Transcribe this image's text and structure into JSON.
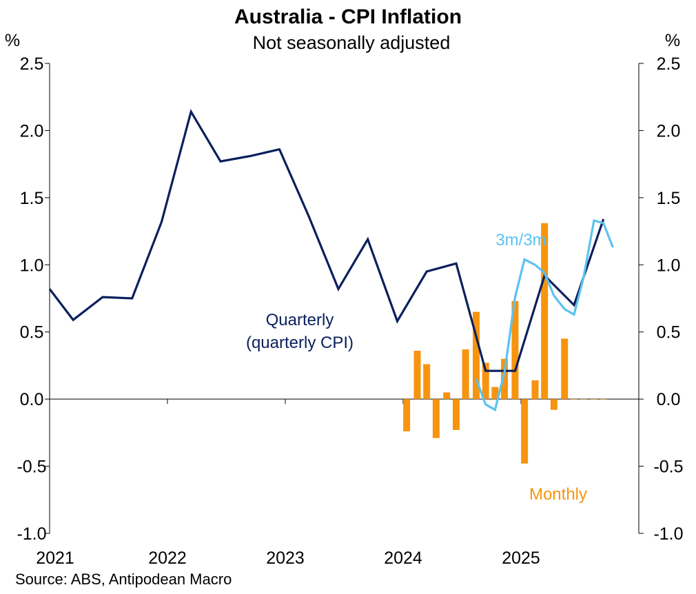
{
  "chart_data": {
    "type": "line+bar",
    "title": "Australia - CPI Inflation",
    "subtitle": "Not seasonally adjusted",
    "left_unit": "%",
    "right_unit": "%",
    "ylim": [
      -1.0,
      2.5
    ],
    "y_ticks": [
      2.5,
      2.0,
      1.5,
      1.0,
      0.5,
      0.0,
      -0.5,
      -1.0
    ],
    "y_tick_labels": [
      "2.5",
      "2.0",
      "1.5",
      "1.0",
      "0.5",
      "0.0",
      "-0.5",
      "-1.0"
    ],
    "x_range": [
      2021.0,
      2026.0
    ],
    "x_ticks": [
      2021,
      2022,
      2023,
      2024,
      2025
    ],
    "x_tick_labels": [
      "2021",
      "2022",
      "2023",
      "2024",
      "2025"
    ],
    "source": "Source: ABS, Antipodean Macro",
    "series": [
      {
        "name": "Quarterly (quarterly CPI)",
        "type": "line",
        "color": "#0a1f5c",
        "label_lines": [
          "Quarterly",
          "(quarterly CPI)"
        ],
        "x": [
          2021.0,
          2021.2,
          2021.45,
          2021.7,
          2021.95,
          2022.2,
          2022.45,
          2022.7,
          2022.95,
          2023.2,
          2023.45,
          2023.7,
          2023.95,
          2024.2,
          2024.45,
          2024.7,
          2024.95,
          2025.2,
          2025.45,
          2025.7
        ],
        "values": [
          0.82,
          0.59,
          0.76,
          0.75,
          1.32,
          2.14,
          1.77,
          1.81,
          1.86,
          1.36,
          0.82,
          1.19,
          0.58,
          0.95,
          1.01,
          0.21,
          0.21,
          0.92,
          0.7,
          1.34
        ]
      },
      {
        "name": "3m/3m",
        "type": "line",
        "color": "#5bc2f0",
        "label_lines": [
          "3m/3m"
        ],
        "x": [
          2024.62,
          2024.7,
          2024.78,
          2024.86,
          2024.95,
          2025.03,
          2025.12,
          2025.2,
          2025.28,
          2025.37,
          2025.45,
          2025.53,
          2025.62,
          2025.7,
          2025.78
        ],
        "values": [
          0.15,
          -0.04,
          -0.08,
          0.2,
          0.76,
          1.04,
          1.0,
          0.94,
          0.77,
          0.67,
          0.63,
          0.9,
          1.33,
          1.31,
          1.13
        ]
      },
      {
        "name": "Monthly",
        "type": "bar",
        "color": "#f7940f",
        "label_lines": [
          "Monthly"
        ],
        "x": [
          2024.03,
          2024.12,
          2024.2,
          2024.28,
          2024.37,
          2024.45,
          2024.53,
          2024.62,
          2024.7,
          2024.78,
          2024.86,
          2024.95,
          2025.03,
          2025.12,
          2025.2,
          2025.28,
          2025.37,
          2025.45,
          2025.53,
          2025.62,
          2025.7
        ],
        "values": [
          -0.24,
          0.36,
          0.26,
          -0.29,
          0.05,
          -0.23,
          0.37,
          0.65,
          0.27,
          0.09,
          0.3,
          0.73,
          -0.48,
          0.14,
          1.31,
          -0.08,
          0.45,
          0.0,
          0,
          0,
          0
        ]
      }
    ]
  }
}
